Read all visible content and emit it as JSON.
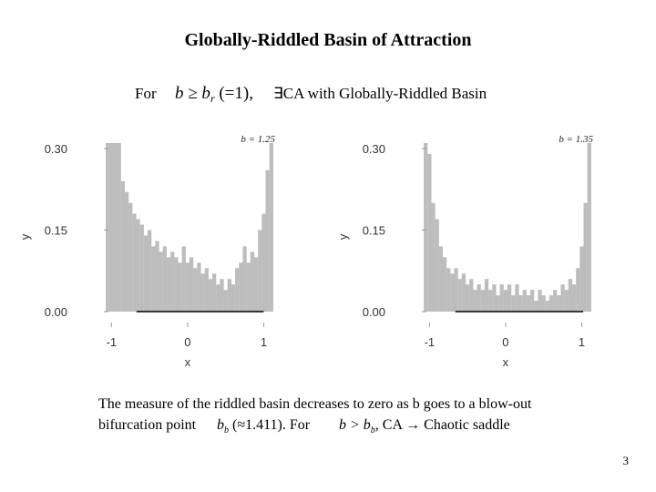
{
  "slide": {
    "title": "Globally-Riddled Basin of Attraction",
    "headline": {
      "lead": "For",
      "condition": "b ≥ b",
      "condition_sub": "r",
      "condition_rest": " (=1),",
      "claim": "∃CA with Globally-Riddled Basin"
    },
    "caption": {
      "line1": "The measure of the riddled basin decreases to zero as b goes to a blow-out",
      "line2_a": "bifurcation point",
      "point": "b",
      "point_sub": "b",
      "point_value": " (≈1.411)",
      "line2_b": ". For",
      "cond": "b > b",
      "cond_sub": "b",
      "line2_c": ", CA → Chaotic saddle"
    },
    "page_number": "3"
  },
  "chart_data": [
    {
      "type": "spike",
      "annotation": "b = 1.25",
      "x_label": "x",
      "y_label": "y",
      "color": "#bdbdbd",
      "attractor_color": "#000000",
      "attractor_x": [
        -0.67,
        1.0
      ],
      "xlim": [
        -1.1,
        1.15
      ],
      "ylim": [
        -0.01,
        0.31
      ],
      "xticks": [
        -1,
        0,
        1
      ],
      "yticks": [
        {
          "value": 0,
          "label": "0.00"
        },
        {
          "value": 0.15,
          "label": "0.15"
        },
        {
          "value": 0.3,
          "label": "0.30"
        }
      ],
      "x": [
        -1.05,
        -1.0,
        -0.95,
        -0.9,
        -0.85,
        -0.8,
        -0.75,
        -0.7,
        -0.65,
        -0.6,
        -0.55,
        -0.5,
        -0.45,
        -0.4,
        -0.35,
        -0.3,
        -0.25,
        -0.2,
        -0.15,
        -0.1,
        -0.05,
        0,
        0.05,
        0.1,
        0.15,
        0.2,
        0.25,
        0.3,
        0.35,
        0.4,
        0.45,
        0.5,
        0.55,
        0.6,
        0.65,
        0.7,
        0.75,
        0.8,
        0.85,
        0.9,
        0.95,
        1.0,
        1.05,
        1.1
      ],
      "values": [
        0.31,
        0.31,
        0.31,
        0.31,
        0.24,
        0.22,
        0.2,
        0.18,
        0.17,
        0.16,
        0.14,
        0.15,
        0.12,
        0.13,
        0.11,
        0.12,
        0.1,
        0.11,
        0.1,
        0.09,
        0.12,
        0.09,
        0.1,
        0.08,
        0.09,
        0.07,
        0.08,
        0.06,
        0.07,
        0.05,
        0.06,
        0.04,
        0.06,
        0.05,
        0.08,
        0.09,
        0.12,
        0.09,
        0.11,
        0.1,
        0.15,
        0.18,
        0.26,
        0.31
      ]
    },
    {
      "type": "spike",
      "annotation": "b = 1.35",
      "x_label": "x",
      "y_label": "y",
      "color": "#bdbdbd",
      "attractor_color": "#000000",
      "attractor_x": [
        -0.66,
        1.02
      ],
      "xlim": [
        -1.1,
        1.15
      ],
      "ylim": [
        -0.01,
        0.31
      ],
      "xticks": [
        -1,
        0,
        1
      ],
      "yticks": [
        {
          "value": 0,
          "label": "0.00"
        },
        {
          "value": 0.15,
          "label": "0.15"
        },
        {
          "value": 0.3,
          "label": "0.30"
        }
      ],
      "x": [
        -1.05,
        -1.0,
        -0.95,
        -0.9,
        -0.85,
        -0.8,
        -0.75,
        -0.7,
        -0.65,
        -0.6,
        -0.55,
        -0.5,
        -0.45,
        -0.4,
        -0.35,
        -0.3,
        -0.25,
        -0.2,
        -0.15,
        -0.1,
        -0.05,
        0,
        0.05,
        0.1,
        0.15,
        0.2,
        0.25,
        0.3,
        0.35,
        0.4,
        0.45,
        0.5,
        0.55,
        0.6,
        0.65,
        0.7,
        0.75,
        0.8,
        0.85,
        0.9,
        0.95,
        1.0,
        1.05,
        1.1
      ],
      "values": [
        0.31,
        0.29,
        0.2,
        0.17,
        0.12,
        0.1,
        0.08,
        0.07,
        0.08,
        0.06,
        0.07,
        0.05,
        0.06,
        0.04,
        0.05,
        0.04,
        0.06,
        0.04,
        0.05,
        0.03,
        0.05,
        0.04,
        0.05,
        0.03,
        0.05,
        0.03,
        0.04,
        0.03,
        0.04,
        0.02,
        0.04,
        0.03,
        0.02,
        0.03,
        0.04,
        0.03,
        0.05,
        0.04,
        0.06,
        0.05,
        0.08,
        0.12,
        0.2,
        0.31
      ]
    }
  ]
}
